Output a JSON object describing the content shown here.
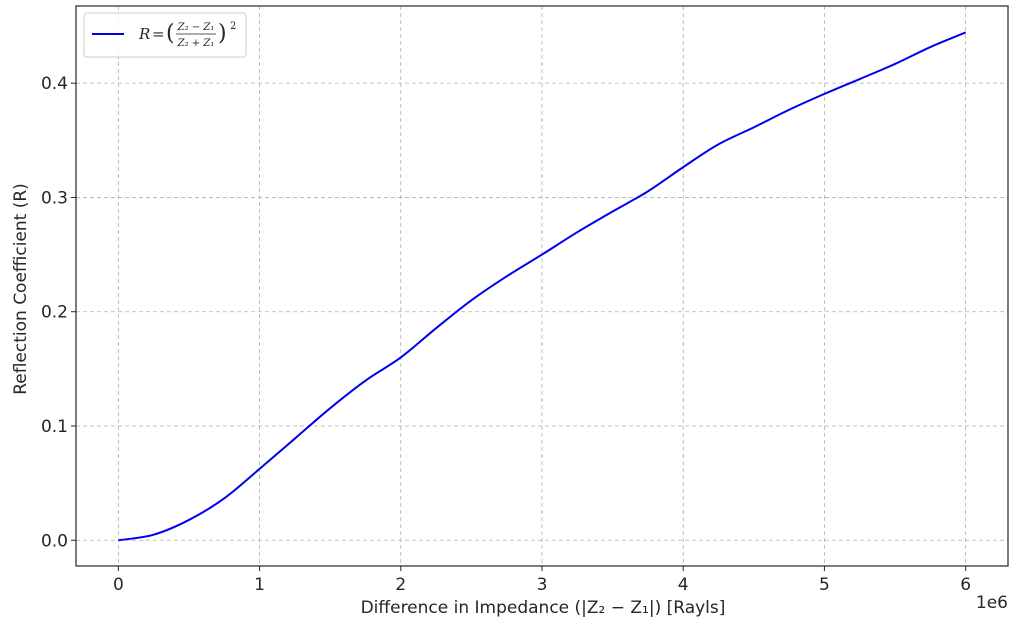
{
  "chart_data": {
    "type": "line",
    "title": "",
    "xlabel": "Difference in Impedance (|Z₂ − Z₁|) [Rayls]",
    "ylabel": "Reflection Coefficient (R)",
    "x_offset_label": "1e6",
    "xlim": [
      -0.3,
      6.3
    ],
    "ylim": [
      -0.0225,
      0.4675
    ],
    "x_ticks": [
      0,
      1,
      2,
      3,
      4,
      5,
      6
    ],
    "x_tick_labels": [
      "0",
      "1",
      "2",
      "3",
      "4",
      "5",
      "6"
    ],
    "y_ticks": [
      0.0,
      0.1,
      0.2,
      0.3,
      0.4
    ],
    "y_tick_labels": [
      "0.0",
      "0.1",
      "0.2",
      "0.3",
      "0.4"
    ],
    "grid": true,
    "legend_position": "top-left",
    "series": [
      {
        "name": "R = ((Z₂ − Z₁)/(Z₂ + Z₁))²",
        "color": "#0000ee",
        "x": [
          0,
          0.25,
          0.5,
          0.75,
          1.0,
          1.25,
          1.5,
          1.75,
          2.0,
          2.25,
          2.5,
          2.75,
          3.0,
          3.25,
          3.5,
          3.75,
          4.0,
          4.25,
          4.5,
          4.75,
          5.0,
          5.25,
          5.5,
          5.75,
          6.0
        ],
        "y": [
          0.0,
          0.0049,
          0.0178,
          0.0367,
          0.0625,
          0.089,
          0.1156,
          0.1397,
          0.16,
          0.1856,
          0.21,
          0.231,
          0.25,
          0.2696,
          0.2877,
          0.3053,
          0.3265,
          0.3465,
          0.3613,
          0.3767,
          0.3906,
          0.4036,
          0.4168,
          0.4316,
          0.4444
        ]
      }
    ],
    "legend": {
      "lhs": "R",
      "eq": "=",
      "numerator": "Z₂ − Z₁",
      "denominator": "Z₂ + Z₁",
      "exponent": "2"
    }
  }
}
